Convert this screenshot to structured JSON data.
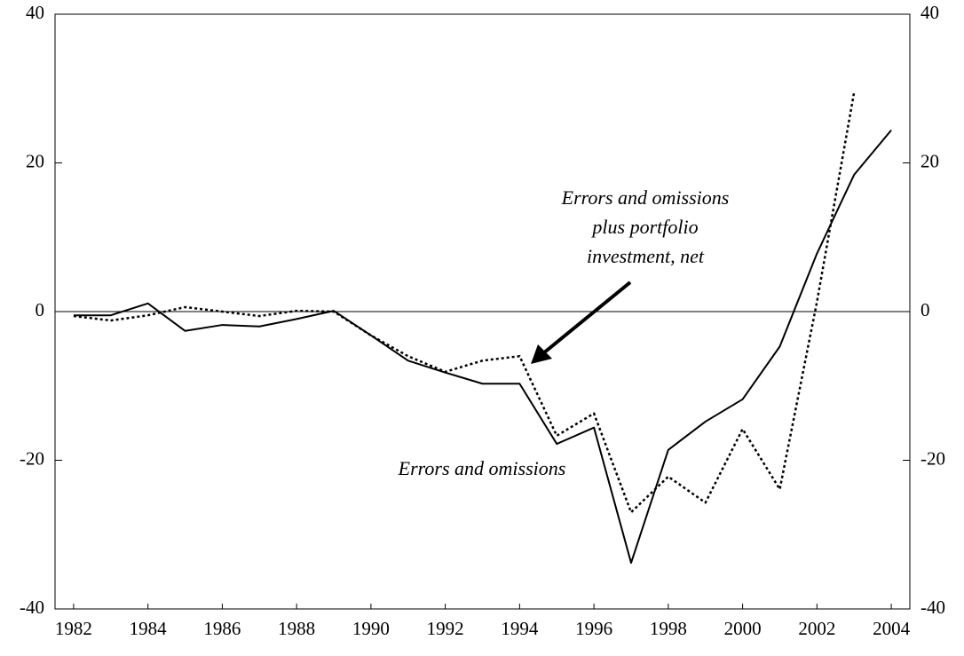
{
  "chart_data": {
    "type": "line",
    "x": [
      1982,
      1983,
      1984,
      1985,
      1986,
      1987,
      1988,
      1989,
      1990,
      1991,
      1992,
      1993,
      1994,
      1995,
      1996,
      1997,
      1998,
      1999,
      2000,
      2001,
      2002,
      2003,
      2004
    ],
    "series": [
      {
        "color": "#000000",
        "dash": "solid",
        "values": [
          -0.5,
          -0.5,
          1.1,
          -2.6,
          -1.8,
          -2.0,
          -1.0,
          0.1,
          -3.2,
          -6.6,
          -8.2,
          -9.7,
          -9.7,
          -17.8,
          -15.6,
          -33.8,
          -18.6,
          -14.8,
          -11.8,
          -4.7,
          7.8,
          18.4,
          24.4
        ]
      },
      {
        "color": "#000000",
        "dash": "dotted",
        "values": [
          -0.6,
          -1.2,
          -0.5,
          0.6,
          0,
          -0.6,
          0.1,
          0,
          -3.2,
          -6.0,
          -8.1,
          -6.6,
          -6.0,
          -16.7,
          -13.7,
          -27.0,
          -22.2,
          -25.7,
          -15.8,
          -23.9,
          1.3,
          29.5,
          null
        ]
      }
    ],
    "xlim": [
      1981.5,
      2004.5
    ],
    "xticks": [
      1982,
      1984,
      1986,
      1988,
      1990,
      1992,
      1994,
      1996,
      1998,
      2000,
      2002,
      2004
    ],
    "ylim": [
      -40,
      40
    ],
    "yticks": [
      -40,
      -20,
      0,
      20,
      40
    ],
    "y2lim": [
      -40,
      40
    ],
    "y2ticks": [
      -40,
      -20,
      0,
      20,
      40
    ],
    "annotations": [
      {
        "lines": [
          "Errors and omissions",
          "plus portfolio",
          "investment, net"
        ]
      },
      {
        "lines": [
          "Errors and omissions"
        ]
      }
    ]
  }
}
